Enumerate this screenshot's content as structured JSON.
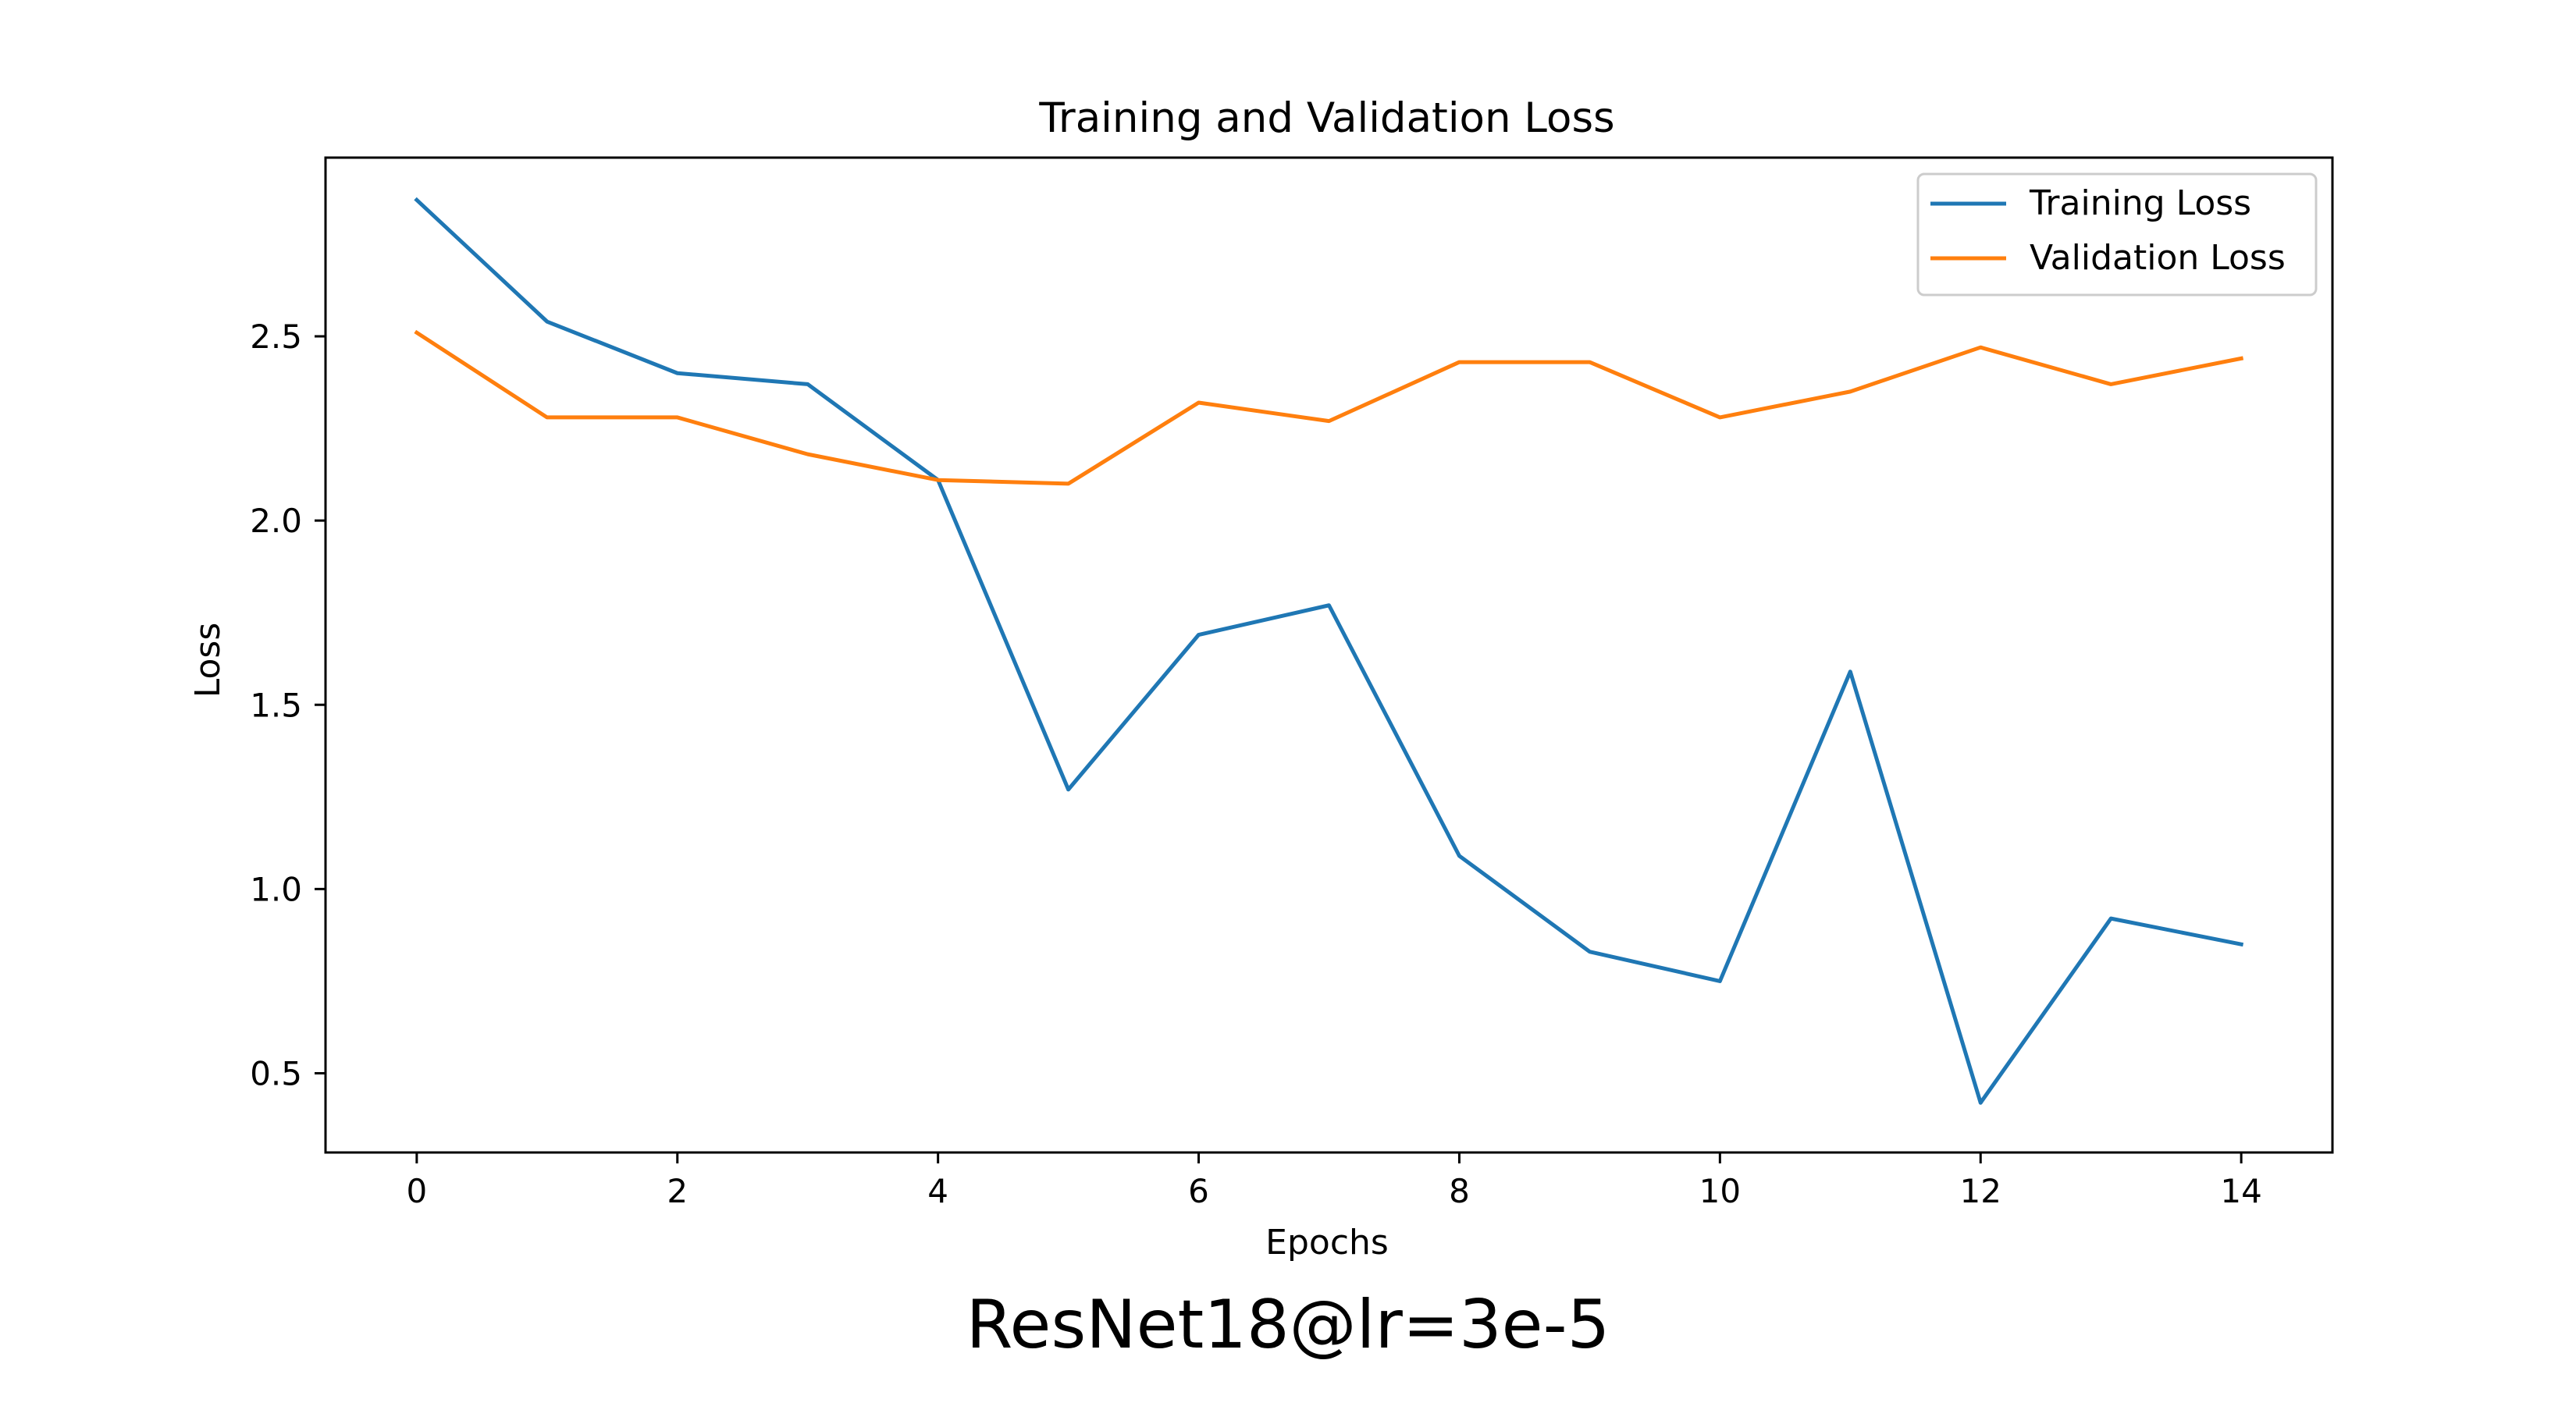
{
  "caption": "ResNet18@lr=3e-5",
  "chart_data": {
    "type": "line",
    "title": "Training and Validation Loss",
    "xlabel": "Epochs",
    "ylabel": "Loss",
    "x": [
      0,
      1,
      2,
      3,
      4,
      5,
      6,
      7,
      8,
      9,
      10,
      11,
      12,
      13,
      14
    ],
    "xlim": [
      -0.7,
      14.7
    ],
    "ylim": [
      0.285,
      2.985
    ],
    "xticks": [
      0,
      2,
      4,
      6,
      8,
      10,
      12,
      14
    ],
    "yticks": [
      0.5,
      1.0,
      1.5,
      2.0,
      2.5
    ],
    "xtick_labels": [
      "0",
      "2",
      "4",
      "6",
      "8",
      "10",
      "12",
      "14"
    ],
    "ytick_labels": [
      "0.5",
      "1.0",
      "1.5",
      "2.0",
      "2.5"
    ],
    "grid": false,
    "legend_position": "top-right",
    "series": [
      {
        "name": "Training Loss",
        "color": "#1f77b4",
        "values": [
          2.87,
          2.54,
          2.4,
          2.37,
          2.11,
          1.27,
          1.69,
          1.77,
          1.09,
          0.83,
          0.75,
          1.59,
          0.42,
          0.92,
          0.85
        ]
      },
      {
        "name": "Validation Loss",
        "color": "#ff7f0e",
        "values": [
          2.51,
          2.28,
          2.28,
          2.18,
          2.11,
          2.1,
          2.32,
          2.27,
          2.43,
          2.43,
          2.28,
          2.35,
          2.47,
          2.37,
          2.44
        ]
      }
    ]
  }
}
